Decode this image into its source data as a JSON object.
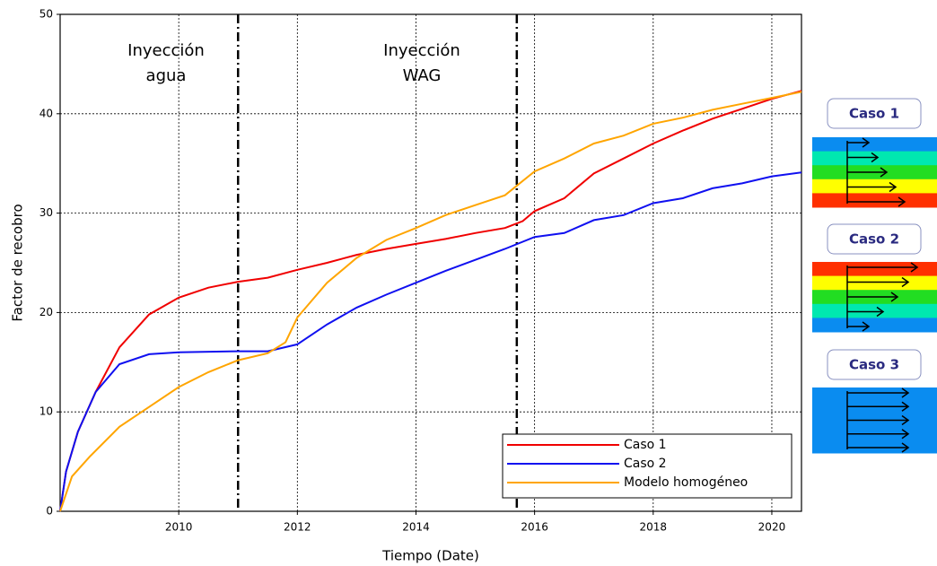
{
  "chart_data": {
    "type": "line",
    "xlabel": "Tiempo (Date)",
    "ylabel": "Factor de recobro",
    "xlim": [
      2008,
      2020.5
    ],
    "ylim": [
      0,
      50
    ],
    "xticks": [
      2010,
      2012,
      2014,
      2016,
      2018,
      2020
    ],
    "yticks": [
      0,
      10,
      20,
      30,
      40,
      50
    ],
    "grid": true,
    "legend": "lower right",
    "vlines": [
      2011.0,
      2015.7
    ],
    "annotations": [
      [
        "Inyección",
        "agua"
      ],
      [
        "Inyección",
        "WAG"
      ]
    ],
    "series": [
      {
        "name": "Caso 1",
        "color": "#f00000",
        "x": [
          2008,
          2008.1,
          2008.3,
          2008.6,
          2009,
          2009.5,
          2010,
          2010.5,
          2011,
          2011.5,
          2012,
          2012.5,
          2013,
          2013.5,
          2014,
          2014.5,
          2015,
          2015.5,
          2015.8,
          2016,
          2016.5,
          2017,
          2017.5,
          2018,
          2018.5,
          2019,
          2019.5,
          2020,
          2020.5
        ],
        "values": [
          0,
          4,
          8,
          12,
          16.5,
          19.8,
          21.5,
          22.5,
          23.1,
          23.5,
          24.3,
          25,
          25.8,
          26.4,
          26.9,
          27.4,
          28,
          28.5,
          29.2,
          30.2,
          31.5,
          34,
          35.5,
          37,
          38.3,
          39.5,
          40.5,
          41.5,
          42.3
        ]
      },
      {
        "name": "Caso 2",
        "color": "#1010f0",
        "x": [
          2008,
          2008.1,
          2008.3,
          2008.6,
          2009,
          2009.5,
          2010,
          2011,
          2011.5,
          2012,
          2012.5,
          2013,
          2013.5,
          2014,
          2014.5,
          2015,
          2015.5,
          2016,
          2016.5,
          2017,
          2017.5,
          2018,
          2018.5,
          2019,
          2019.5,
          2020,
          2020.5
        ],
        "values": [
          0,
          4,
          8,
          12,
          14.8,
          15.8,
          16,
          16.1,
          16.1,
          16.8,
          18.8,
          20.5,
          21.8,
          23,
          24.2,
          25.3,
          26.4,
          27.6,
          28,
          29.3,
          29.8,
          31,
          31.5,
          32.5,
          33,
          33.7,
          34.1
        ]
      },
      {
        "name": "Modelo homogéneo",
        "color": "#ffa500",
        "x": [
          2008,
          2008.2,
          2008.5,
          2009,
          2009.5,
          2010,
          2010.5,
          2011,
          2011.5,
          2011.8,
          2012,
          2012.5,
          2013,
          2013.5,
          2014,
          2014.5,
          2015,
          2015.5,
          2016,
          2016.5,
          2017,
          2017.5,
          2018,
          2018.5,
          2019,
          2019.5,
          2020,
          2020.5
        ],
        "values": [
          0,
          3.5,
          5.5,
          8.5,
          10.5,
          12.5,
          14,
          15.2,
          15.9,
          17,
          19.5,
          23,
          25.5,
          27.3,
          28.5,
          29.8,
          30.8,
          31.8,
          34.2,
          35.5,
          37,
          37.8,
          39,
          39.6,
          40.4,
          41,
          41.6,
          42.2
        ]
      }
    ]
  },
  "side_panel": {
    "labels": [
      "Caso 1",
      "Caso 2",
      "Caso 3"
    ]
  }
}
